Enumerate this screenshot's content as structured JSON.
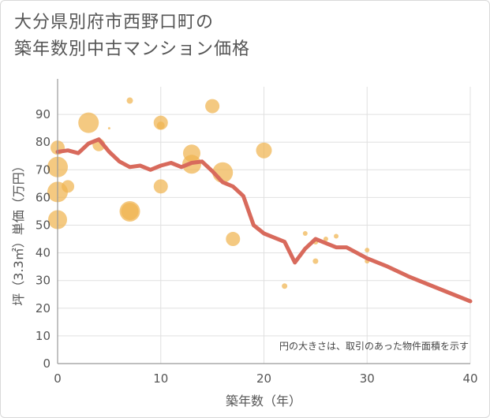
{
  "header": {
    "title_line1": "大分県別府市西野口町の",
    "title_line2": "築年数別中古マンション価格"
  },
  "chart_data": {
    "type": "scatter+line",
    "title": "大分県別府市西野口町の築年数別中古マンション価格",
    "xlabel": "築年数（年）",
    "ylabel": "坪（3.3㎡）単価（万円）",
    "xlim": [
      0,
      40
    ],
    "ylim": [
      0,
      100
    ],
    "xticks": [
      0,
      10,
      20,
      30,
      40
    ],
    "yticks": [
      0,
      10,
      20,
      30,
      40,
      50,
      60,
      70,
      80,
      90
    ],
    "grid": true,
    "note": "円の大きさは、取引のあった物件面積を示す",
    "colors": {
      "bubble": "#f0b450",
      "line": "#d86a5c",
      "grid": "#e0e0e0",
      "axis": "#999999"
    },
    "scatter": [
      {
        "x": 0,
        "y": 78,
        "size": 9
      },
      {
        "x": 0,
        "y": 71,
        "size": 13
      },
      {
        "x": 0,
        "y": 62,
        "size": 13
      },
      {
        "x": 0,
        "y": 52,
        "size": 12
      },
      {
        "x": 1,
        "y": 64,
        "size": 8
      },
      {
        "x": 3,
        "y": 87,
        "size": 13
      },
      {
        "x": 4,
        "y": 79,
        "size": 8
      },
      {
        "x": 5,
        "y": 85,
        "size": 1.5
      },
      {
        "x": 7,
        "y": 95,
        "size": 4
      },
      {
        "x": 7,
        "y": 55,
        "size": 13
      },
      {
        "x": 7,
        "y": 55,
        "size": 11
      },
      {
        "x": 10,
        "y": 87,
        "size": 9
      },
      {
        "x": 10,
        "y": 86,
        "size": 5
      },
      {
        "x": 10,
        "y": 64,
        "size": 9
      },
      {
        "x": 13,
        "y": 76,
        "size": 11
      },
      {
        "x": 13,
        "y": 72,
        "size": 12
      },
      {
        "x": 15,
        "y": 93,
        "size": 9
      },
      {
        "x": 16,
        "y": 69,
        "size": 13
      },
      {
        "x": 17,
        "y": 45,
        "size": 9
      },
      {
        "x": 20,
        "y": 77,
        "size": 10
      },
      {
        "x": 22,
        "y": 28,
        "size": 3.5
      },
      {
        "x": 24,
        "y": 47,
        "size": 3
      },
      {
        "x": 25,
        "y": 44,
        "size": 3.5
      },
      {
        "x": 25,
        "y": 37,
        "size": 3.5
      },
      {
        "x": 26,
        "y": 45,
        "size": 3
      },
      {
        "x": 27,
        "y": 46,
        "size": 3
      },
      {
        "x": 30,
        "y": 41,
        "size": 3
      },
      {
        "x": 30,
        "y": 37,
        "size": 3
      }
    ],
    "line": {
      "x": [
        0,
        1,
        2,
        3,
        4,
        5,
        6,
        7,
        8,
        9,
        10,
        11,
        12,
        13,
        14,
        15,
        16,
        17,
        18,
        19,
        20,
        21,
        22,
        23,
        24,
        25,
        26,
        27,
        28,
        29,
        30,
        32,
        34,
        36,
        38,
        40
      ],
      "y": [
        76.5,
        77,
        76,
        79.5,
        81,
        76.5,
        73,
        71,
        71.5,
        70,
        71.5,
        72.5,
        71,
        72.5,
        73,
        69.5,
        65.5,
        64,
        60.5,
        50,
        47,
        45.5,
        44,
        36.5,
        41.5,
        45,
        43.5,
        42,
        42,
        40,
        38,
        35,
        31.5,
        28.5,
        25.5,
        22.5
      ]
    }
  }
}
